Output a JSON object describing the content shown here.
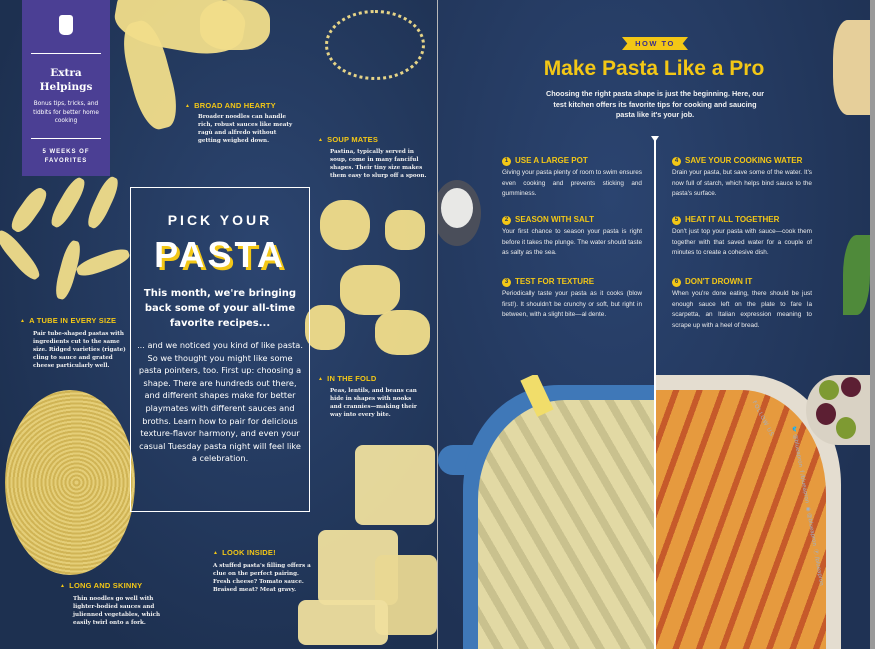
{
  "left_page": {
    "sidebar": {
      "icon": "apron-icon",
      "title_line1": "Extra",
      "title_line2": "Helpings",
      "subtitle": "Bonus tips, tricks, and tidbits for better home cooking",
      "series_line1": "5 WEEKS OF",
      "series_line2": "FAVORITES"
    },
    "feature": {
      "kicker": "PICK YOUR",
      "title": "PASTA",
      "dek": "This month, we're bringing back some of your all-time favorite recipes...",
      "body": "... and we noticed you kind of like pasta. So we thought you might like some pasta pointers, too. First up: choosing a shape. There are hundreds out there, and different shapes make for better playmates with different sauces and broths. Learn how to pair for delicious texture-flavor harmony, and even your casual Tuesday pasta night will feel like a celebration."
    },
    "callouts": [
      {
        "heading": "BROAD AND HEARTY",
        "text": "Broader noodles can handle rich, robust sauces like meaty ragù and alfredo without getting weighed down."
      },
      {
        "heading": "SOUP MATES",
        "text": "Pastina, typically served in soup, come in many fanciful shapes. Their tiny size makes them easy to slurp off a spoon."
      },
      {
        "heading": "A TUBE IN EVERY SIZE",
        "text": "Pair tube-shaped pastas with ingredients cut to the same size. Ridged varieties (rigate) cling to sauce and grated cheese particularly well."
      },
      {
        "heading": "IN THE FOLD",
        "text": "Peas, lentils, and beans can hide in shapes with nooks and crannies—making their way into every bite."
      },
      {
        "heading": "LONG AND SKINNY",
        "text": "Thin noodles go well with lighter-bodied sauces and julienned vegetables, which easily twirl onto a fork."
      },
      {
        "heading": "LOOK INSIDE!",
        "text": "A stuffed pasta's filling offers a clue on the perfect pairing. Fresh cheese? Tomato sauce. Braised meat? Meat gravy."
      }
    ]
  },
  "right_page": {
    "banner": "HOW TO",
    "title": "Make Pasta Like a Pro",
    "intro": "Choosing the right pasta shape is just the beginning. Here, our test kitchen offers its favorite tips for cooking and saucing pasta like it's your job.",
    "tips": [
      {
        "n": "1",
        "heading": "USE A LARGE POT",
        "text": "Giving your pasta plenty of room to swim ensures even cooking and prevents sticking and gumminess."
      },
      {
        "n": "2",
        "heading": "SEASON WITH SALT",
        "text": "Your first chance to season your pasta is right before it takes the plunge. The water should taste as salty as the sea."
      },
      {
        "n": "3",
        "heading": "TEST FOR TEXTURE",
        "text": "Periodically taste your pasta as it cooks (blow first!). It shouldn't be crunchy or soft, but right in between, with a slight bite—al dente."
      },
      {
        "n": "4",
        "heading": "SAVE YOUR COOKING WATER",
        "text": "Drain your pasta, but save some of the water. It's now full of starch, which helps bind sauce to the pasta's surface."
      },
      {
        "n": "5",
        "heading": "HEAT IT ALL TOGETHER",
        "text": "Don't just top your pasta with sauce—cook them together with that saved water for a couple of minutes to create a cohesive dish."
      },
      {
        "n": "6",
        "heading": "DON'T DROWN IT",
        "text": "When you're done eating, there should be just enough sauce left on the plate to fare la scarpetta, an Italian expression meaning to scrape up with a heel of bread."
      }
    ],
    "social": {
      "label": "FOLLOW US",
      "twitter": "@blueapron",
      "facebook": "/blueapron",
      "instagram": "@blueapron",
      "pinterest": "/blueapron"
    }
  },
  "colors": {
    "background": "#23385c",
    "accent": "#f3c716",
    "sidebar": "#4b3f94"
  }
}
